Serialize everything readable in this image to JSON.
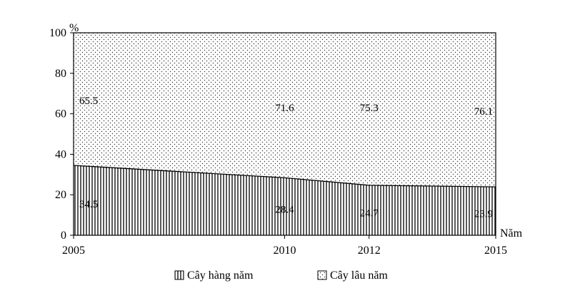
{
  "chart_data": {
    "type": "area",
    "stacked": true,
    "percent": true,
    "x": [
      2005,
      2010,
      2012,
      2015
    ],
    "x_tick_labels": [
      "2005",
      "2010",
      "2012",
      "2015"
    ],
    "series": [
      {
        "name": "Cây hàng năm",
        "values": [
          34.5,
          28.4,
          24.7,
          23.9
        ],
        "labels": [
          "34.5",
          "28.4",
          "24.7",
          "23.9"
        ],
        "pattern": "vertical-lines"
      },
      {
        "name": "Cây lâu năm",
        "values": [
          65.5,
          71.6,
          75.3,
          76.1
        ],
        "labels": [
          "65.5",
          "71.6",
          "75.3",
          "76.1"
        ],
        "pattern": "dots"
      }
    ],
    "ylim": [
      0,
      100
    ],
    "y_ticks": [
      0,
      20,
      40,
      60,
      80,
      100
    ],
    "y_tick_labels": [
      "0",
      "20",
      "40",
      "60",
      "80",
      "100"
    ],
    "ylabel": "%",
    "xlabel": "Năm",
    "legend_position": "bottom",
    "grid": false,
    "title": ""
  }
}
